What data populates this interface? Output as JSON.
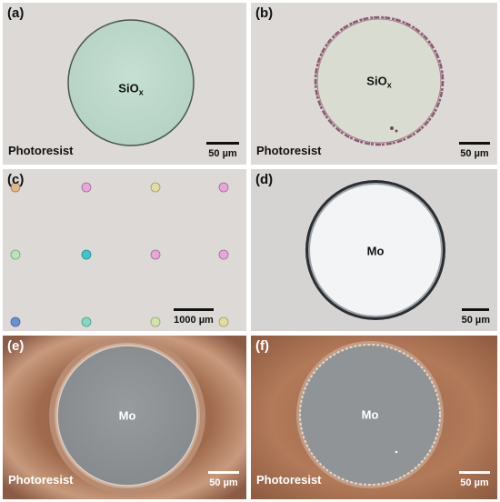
{
  "panels": {
    "a": {
      "label": "(a)",
      "material": "SiO",
      "material_sub": "x",
      "corner_text": "Photoresist",
      "scale": "50 µm"
    },
    "b": {
      "label": "(b)",
      "material": "SiO",
      "material_sub": "x",
      "corner_text": "Photoresist",
      "scale": "50 µm"
    },
    "c": {
      "label": "(c)",
      "scale": "1000 µm"
    },
    "d": {
      "label": "(d)",
      "material": "Mo",
      "scale": "50 µm"
    },
    "e": {
      "label": "(e)",
      "material": "Mo",
      "corner_text": "Photoresist",
      "scale": "50 µm"
    },
    "f": {
      "label": "(f)",
      "material": "Mo",
      "corner_text": "Photoresist",
      "scale": "50 µm"
    }
  },
  "colors": {
    "optical_background": "#d9d6d3",
    "sio_fill": "#bdd9cc",
    "mo_fill": "#f5f6f7",
    "sem_photoresist": "#a46a4a",
    "sem_mo": "#8f9396"
  }
}
